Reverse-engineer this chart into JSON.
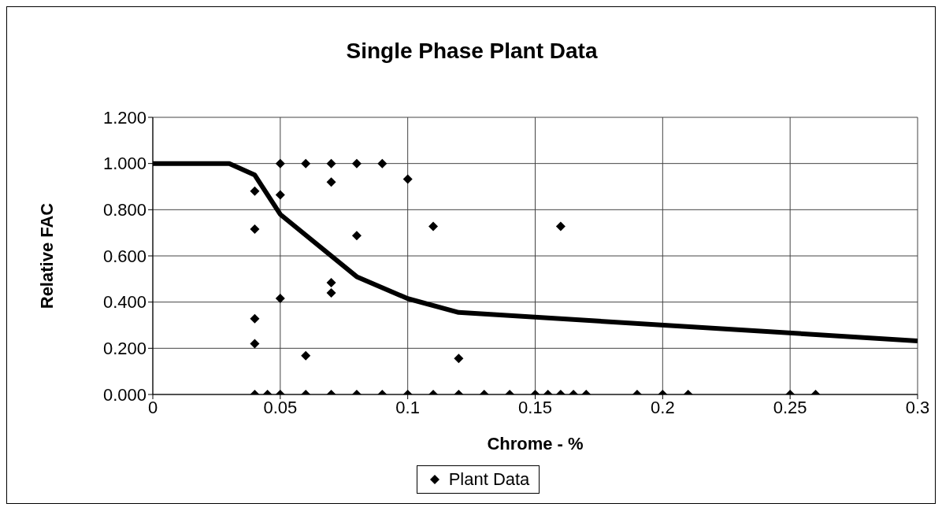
{
  "chart_data": {
    "type": "scatter",
    "title": "Single Phase Plant Data",
    "xlabel": "Chrome - %",
    "ylabel": "Relative FAC",
    "xlim": [
      0,
      0.3
    ],
    "xticks": [
      0,
      0.05,
      0.1,
      0.15,
      0.2,
      0.25,
      0.3
    ],
    "ylim": [
      0,
      1.2
    ],
    "yticks": [
      {
        "value": 0,
        "label": "0.000"
      },
      {
        "value": 0.2,
        "label": "0.200"
      },
      {
        "value": 0.4,
        "label": "0.400"
      },
      {
        "value": 0.6,
        "label": "0.600"
      },
      {
        "value": 0.8,
        "label": "0.800"
      },
      {
        "value": 1,
        "label": "1.000"
      },
      {
        "value": 1.2,
        "label": "1.200"
      }
    ],
    "grid": true,
    "legend": "bottom",
    "series": [
      {
        "name": "Plant Data",
        "color": "#000000",
        "marker": "diamond",
        "x": [
          0.04,
          0.04,
          0.04,
          0.04,
          0.04,
          0.045,
          0.05,
          0.05,
          0.05,
          0.05,
          0.06,
          0.06,
          0.06,
          0.07,
          0.07,
          0.07,
          0.07,
          0.07,
          0.08,
          0.08,
          0.08,
          0.09,
          0.09,
          0.1,
          0.1,
          0.11,
          0.11,
          0.12,
          0.12,
          0.13,
          0.14,
          0.15,
          0.155,
          0.16,
          0.16,
          0.165,
          0.17,
          0.19,
          0.2,
          0.21,
          0.25,
          0.26
        ],
        "values": [
          0.88,
          0.716,
          0.328,
          0.22,
          0,
          0,
          1,
          0.864,
          0.416,
          0,
          1,
          0.168,
          0,
          1,
          0.92,
          0.484,
          0.44,
          0,
          1,
          0.688,
          0,
          1,
          0,
          0.932,
          0,
          0.728,
          0,
          0.156,
          0,
          0,
          0,
          0,
          0,
          0.728,
          0,
          0,
          0,
          0,
          0,
          0,
          0,
          0
        ]
      },
      {
        "type": "line",
        "color": "#000000",
        "marker": "none",
        "line_style": "solid",
        "x": [
          0,
          0.03,
          0.04,
          0.05,
          0.08,
          0.1,
          0.12,
          0.3
        ],
        "values": [
          1,
          1,
          0.95,
          0.78,
          0.51,
          0.415,
          0.355,
          0.232
        ]
      }
    ]
  }
}
